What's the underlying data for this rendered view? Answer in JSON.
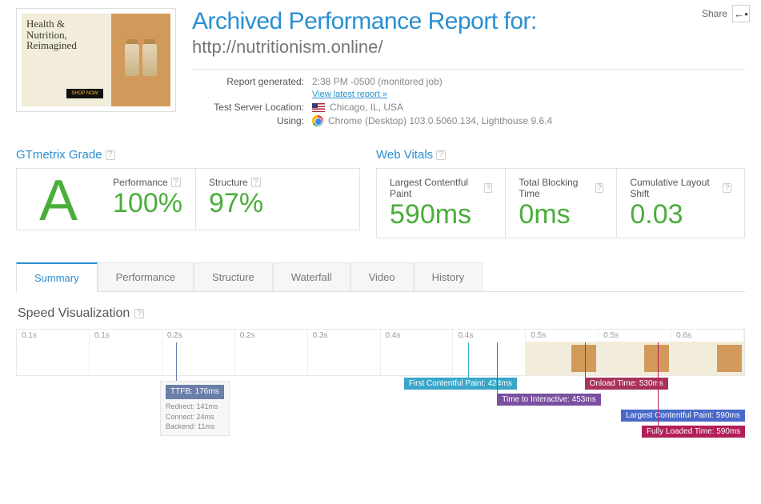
{
  "share": {
    "label": "Share"
  },
  "thumb": {
    "title_l1": "Health &",
    "title_l2": "Nutrition,",
    "title_l3": "Reimagined",
    "btn": "SHOP NOW"
  },
  "title": {
    "main": "Archived Performance Report for:",
    "url": "http://nutritionism.online/"
  },
  "meta": {
    "generated_label": "Report generated:",
    "generated_val": "2:38 PM -0500 (monitored job)",
    "latest_link": "View latest report »",
    "server_label": "Test Server Location:",
    "server_val": "Chicago, IL, USA",
    "using_label": "Using:",
    "using_val": "Chrome (Desktop) 103.0.5060.134, Lighthouse 9.6.4"
  },
  "grade": {
    "section": "GTmetrix Grade",
    "letter": "A",
    "perf_label": "Performance",
    "perf_val": "100%",
    "struct_label": "Structure",
    "struct_val": "97%"
  },
  "vitals": {
    "section": "Web Vitals",
    "lcp_label": "Largest Contentful Paint",
    "lcp_val": "590ms",
    "tbt_label": "Total Blocking Time",
    "tbt_val": "0ms",
    "cls_label": "Cumulative Layout Shift",
    "cls_val": "0.03"
  },
  "tabs": {
    "summary": "Summary",
    "performance": "Performance",
    "structure": "Structure",
    "waterfall": "Waterfall",
    "video": "Video",
    "history": "History"
  },
  "sv": {
    "title": "Speed Visualization",
    "times": [
      "0.1s",
      "0.1s",
      "0.2s",
      "0.2s",
      "0.3s",
      "0.4s",
      "0.4s",
      "0.5s",
      "0.5s",
      "0.6s"
    ],
    "ttfb_tag": "TTFB: 176ms",
    "ttfb_detail_1": "Redirect: 141ms",
    "ttfb_detail_2": "Connect: 24ms",
    "ttfb_detail_3": "Backend: 11ms",
    "fcp": "First Contentful Paint: 424ms",
    "tti": "Time to Interactive: 453ms",
    "onload": "Onload Time: 530ms",
    "lcp": "Largest Contentful Paint: 590ms",
    "flt": "Fully Loaded Time: 590ms",
    "colors": {
      "ttfb": "#6b7fa8",
      "fcp": "#3aa7c9",
      "tti": "#7a4fa0",
      "onload": "#a8325a",
      "lcp": "#4969c9",
      "flt": "#b11f5a"
    },
    "positions": {
      "ttfb_pct": 22,
      "fcp_pct": 62,
      "tti_pct": 66,
      "onload_pct": 78,
      "lcp_pct": 88,
      "flt_pct": 88
    }
  }
}
